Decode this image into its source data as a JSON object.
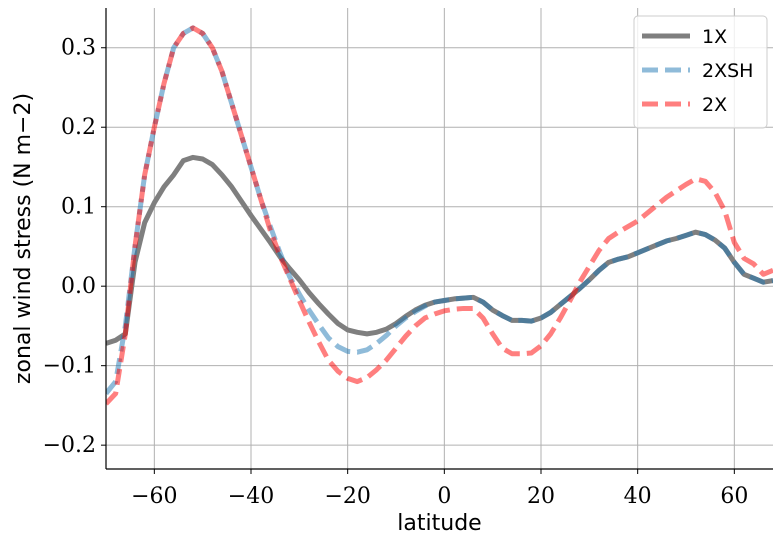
{
  "chart_data": {
    "type": "line",
    "xlabel": "latitude",
    "ylabel": "zonal wind stress (N m−2)",
    "xlim": [
      -70,
      68
    ],
    "ylim": [
      -0.23,
      0.35
    ],
    "xticks": [
      -60,
      -40,
      -20,
      0,
      20,
      40,
      60
    ],
    "yticks": [
      -0.2,
      -0.1,
      0.0,
      0.1,
      0.2,
      0.3
    ],
    "xtick_labels": [
      "−60",
      "−40",
      "−20",
      "0",
      "20",
      "40",
      "60"
    ],
    "ytick_labels": [
      "−0.2",
      "−0.1",
      "0.0",
      "0.1",
      "0.2",
      "0.3"
    ],
    "grid": true,
    "legend_position": "top-right",
    "series": [
      {
        "name": "1X",
        "color": "#7f7f7f",
        "style": "solid",
        "x": [
          -70,
          -68,
          -66,
          -64,
          -62,
          -60,
          -58,
          -56,
          -54,
          -52,
          -50,
          -48,
          -46,
          -44,
          -42,
          -40,
          -38,
          -36,
          -34,
          -32,
          -30,
          -28,
          -26,
          -24,
          -22,
          -20,
          -18,
          -16,
          -14,
          -12,
          -10,
          -8,
          -6,
          -4,
          -2,
          0,
          2,
          4,
          6,
          8,
          10,
          12,
          14,
          16,
          18,
          20,
          22,
          24,
          26,
          28,
          30,
          32,
          34,
          36,
          38,
          40,
          42,
          44,
          46,
          48,
          50,
          52,
          54,
          56,
          58,
          60,
          62,
          64,
          66,
          68
        ],
        "values": [
          -0.072,
          -0.068,
          -0.06,
          0.03,
          0.08,
          0.105,
          0.125,
          0.14,
          0.158,
          0.162,
          0.16,
          0.153,
          0.14,
          0.125,
          0.107,
          0.089,
          0.072,
          0.055,
          0.037,
          0.022,
          0.008,
          -0.008,
          -0.022,
          -0.035,
          -0.047,
          -0.055,
          -0.058,
          -0.06,
          -0.058,
          -0.054,
          -0.047,
          -0.038,
          -0.03,
          -0.024,
          -0.02,
          -0.018,
          -0.016,
          -0.015,
          -0.014,
          -0.02,
          -0.03,
          -0.037,
          -0.043,
          -0.043,
          -0.044,
          -0.04,
          -0.033,
          -0.023,
          -0.013,
          -0.003,
          0.008,
          0.02,
          0.03,
          0.034,
          0.037,
          0.042,
          0.047,
          0.052,
          0.057,
          0.06,
          0.064,
          0.068,
          0.065,
          0.058,
          0.048,
          0.03,
          0.015,
          0.01,
          0.005,
          0.007
        ]
      },
      {
        "name": "2XSH",
        "color": "#1f77b4",
        "style": "dashed",
        "x": [
          -70,
          -68,
          -66,
          -64,
          -62,
          -60,
          -58,
          -56,
          -54,
          -52,
          -50,
          -48,
          -46,
          -44,
          -42,
          -40,
          -38,
          -36,
          -34,
          -32,
          -30,
          -28,
          -26,
          -24,
          -22,
          -20,
          -18,
          -16,
          -14,
          -12,
          -10,
          -8,
          -6,
          -4,
          -2,
          0,
          2,
          4,
          6,
          8,
          10,
          12,
          14,
          16,
          18,
          20,
          22,
          24,
          26,
          28,
          30,
          32,
          34,
          36,
          38,
          40,
          42,
          44,
          46,
          48,
          50,
          52,
          54,
          56,
          58,
          60,
          62,
          64,
          66,
          68
        ],
        "values": [
          -0.135,
          -0.12,
          -0.05,
          0.05,
          0.14,
          0.2,
          0.255,
          0.3,
          0.318,
          0.325,
          0.318,
          0.3,
          0.27,
          0.23,
          0.19,
          0.15,
          0.11,
          0.075,
          0.042,
          0.012,
          -0.01,
          -0.03,
          -0.048,
          -0.065,
          -0.076,
          -0.082,
          -0.083,
          -0.08,
          -0.072,
          -0.062,
          -0.05,
          -0.04,
          -0.032,
          -0.025,
          -0.02,
          -0.018,
          -0.016,
          -0.015,
          -0.014,
          -0.02,
          -0.03,
          -0.037,
          -0.043,
          -0.043,
          -0.044,
          -0.04,
          -0.033,
          -0.023,
          -0.013,
          -0.003,
          0.008,
          0.02,
          0.03,
          0.034,
          0.037,
          0.042,
          0.047,
          0.052,
          0.057,
          0.06,
          0.064,
          0.068,
          0.065,
          0.058,
          0.048,
          0.03,
          0.015,
          0.01,
          0.005,
          0.007
        ]
      },
      {
        "name": "2X",
        "color": "#ff0000",
        "style": "dashed",
        "x": [
          -70,
          -68,
          -66,
          -64,
          -62,
          -60,
          -58,
          -56,
          -54,
          -52,
          -50,
          -48,
          -46,
          -44,
          -42,
          -40,
          -38,
          -36,
          -34,
          -32,
          -30,
          -28,
          -26,
          -24,
          -22,
          -20,
          -18,
          -16,
          -14,
          -12,
          -10,
          -8,
          -6,
          -4,
          -2,
          0,
          2,
          4,
          6,
          8,
          10,
          12,
          14,
          16,
          18,
          20,
          22,
          24,
          26,
          28,
          30,
          32,
          34,
          36,
          38,
          40,
          42,
          44,
          46,
          48,
          50,
          52,
          54,
          56,
          58,
          60,
          62,
          64,
          66,
          68
        ],
        "values": [
          -0.148,
          -0.135,
          -0.06,
          0.05,
          0.14,
          0.2,
          0.255,
          0.3,
          0.318,
          0.325,
          0.318,
          0.3,
          0.27,
          0.23,
          0.19,
          0.15,
          0.11,
          0.07,
          0.038,
          0.01,
          -0.018,
          -0.045,
          -0.07,
          -0.093,
          -0.107,
          -0.116,
          -0.12,
          -0.115,
          -0.105,
          -0.093,
          -0.078,
          -0.063,
          -0.05,
          -0.04,
          -0.035,
          -0.031,
          -0.029,
          -0.028,
          -0.028,
          -0.04,
          -0.06,
          -0.078,
          -0.085,
          -0.085,
          -0.084,
          -0.075,
          -0.06,
          -0.04,
          -0.018,
          0.005,
          0.025,
          0.045,
          0.06,
          0.068,
          0.075,
          0.082,
          0.092,
          0.102,
          0.112,
          0.12,
          0.128,
          0.135,
          0.132,
          0.118,
          0.095,
          0.055,
          0.035,
          0.028,
          0.015,
          0.02
        ]
      }
    ]
  }
}
